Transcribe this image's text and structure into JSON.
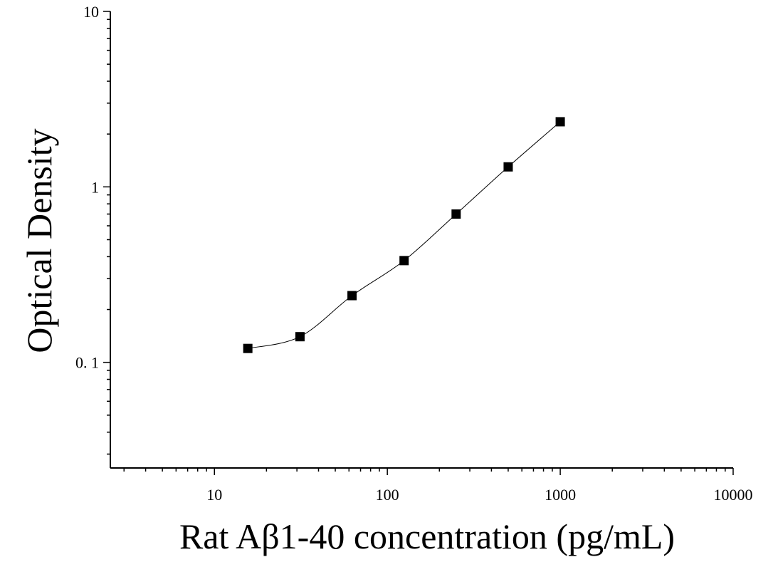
{
  "chart_data": {
    "type": "scatter",
    "title": "",
    "xlabel": "Rat Aβ1-40 concentration (pg/mL)",
    "ylabel": "Optical Density",
    "x_scale": "log",
    "y_scale": "log",
    "xlim": [
      2.5,
      10000
    ],
    "ylim": [
      0.025,
      10
    ],
    "x_ticks": [
      10,
      100,
      1000,
      10000
    ],
    "x_tick_labels": [
      "10",
      "100",
      "1000",
      "10000"
    ],
    "y_ticks": [
      0.1,
      1,
      10
    ],
    "y_tick_labels": [
      "0. 1",
      "1",
      "10"
    ],
    "grid": false,
    "legend": "none",
    "colors": {
      "marker": "#000000",
      "curve": "#000000",
      "axis": "#000000"
    },
    "series": [
      {
        "points": [
          {
            "x": 15.6,
            "y": 0.12
          },
          {
            "x": 31.25,
            "y": 0.14
          },
          {
            "x": 62.5,
            "y": 0.24
          },
          {
            "x": 125,
            "y": 0.38
          },
          {
            "x": 250,
            "y": 0.7
          },
          {
            "x": 500,
            "y": 1.3
          },
          {
            "x": 1000,
            "y": 2.35
          }
        ],
        "marker": "square",
        "fit_curve": true
      }
    ]
  }
}
